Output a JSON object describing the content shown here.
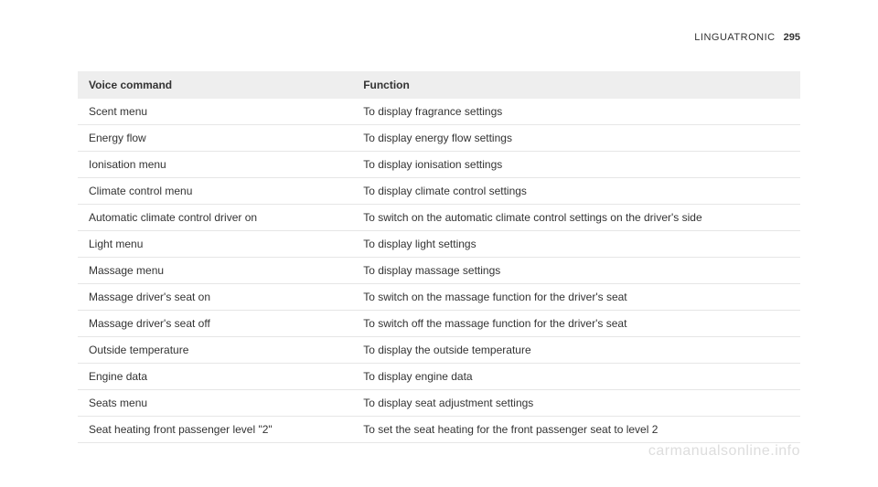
{
  "header": {
    "section": "LINGUATRONIC",
    "page": "295"
  },
  "table": {
    "columns": [
      "Voice command",
      "Function"
    ],
    "rows": [
      [
        "Scent menu",
        "To display fragrance settings"
      ],
      [
        "Energy flow",
        "To display energy flow settings"
      ],
      [
        "Ionisation menu",
        "To display ionisation settings"
      ],
      [
        "Climate control menu",
        "To display climate control settings"
      ],
      [
        "Automatic climate control driver on",
        "To switch on the automatic climate control settings on the driver's side"
      ],
      [
        "Light menu",
        "To display light settings"
      ],
      [
        "Massage menu",
        "To display massage settings"
      ],
      [
        "Massage driver's seat on",
        "To switch on the massage function for the driver's seat"
      ],
      [
        "Massage driver's seat off",
        "To switch off the massage function for the driver's seat"
      ],
      [
        "Outside temperature",
        "To display the outside temperature"
      ],
      [
        "Engine data",
        "To display engine data"
      ],
      [
        "Seats menu",
        "To display seat adjustment settings"
      ],
      [
        "Seat heating front passenger level \"2\"",
        "To set the seat heating for the front passenger seat to level 2"
      ]
    ],
    "header_bg": "#eeeeee",
    "row_border": "#e6e6e6",
    "text_color": "#333333",
    "fontsize": 12
  },
  "watermark": "carmanualsonline.info"
}
